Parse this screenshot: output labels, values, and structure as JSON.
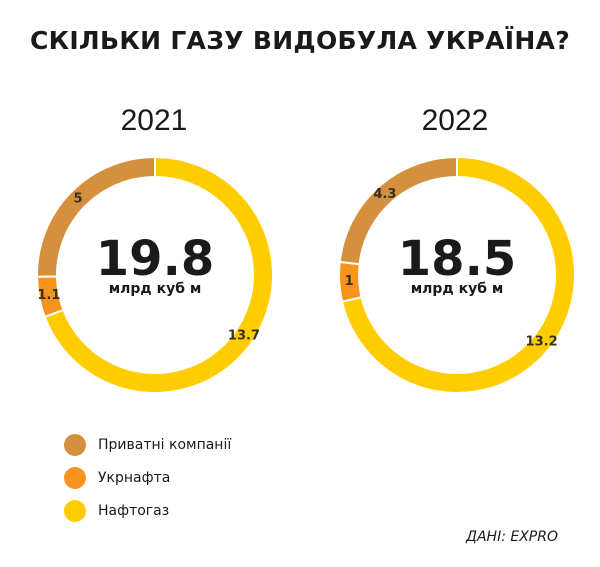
{
  "chart_data": {
    "type": "donut",
    "title": "СКІЛЬКИ ГАЗУ ВИДОБУЛА УКРАЇНА?",
    "source": "ДАНІ: EXPRO",
    "unit": "млрд куб м",
    "legend_position": "bottom-left",
    "series": [
      {
        "name": "Приватні компанії",
        "color": "#d4903c"
      },
      {
        "name": "Укрнафта",
        "color": "#f7941d"
      },
      {
        "name": "Нафтогаз",
        "color": "#ffcc00"
      }
    ],
    "charts": [
      {
        "year": "2021",
        "total": "19.8",
        "values": [
          5,
          1.1,
          13.7
        ],
        "labels": [
          "5",
          "1.1",
          "13.7"
        ]
      },
      {
        "year": "2022",
        "total": "18.5",
        "values": [
          4.3,
          1,
          13.2
        ],
        "labels": [
          "4.3",
          "1",
          "13.2"
        ]
      }
    ]
  }
}
